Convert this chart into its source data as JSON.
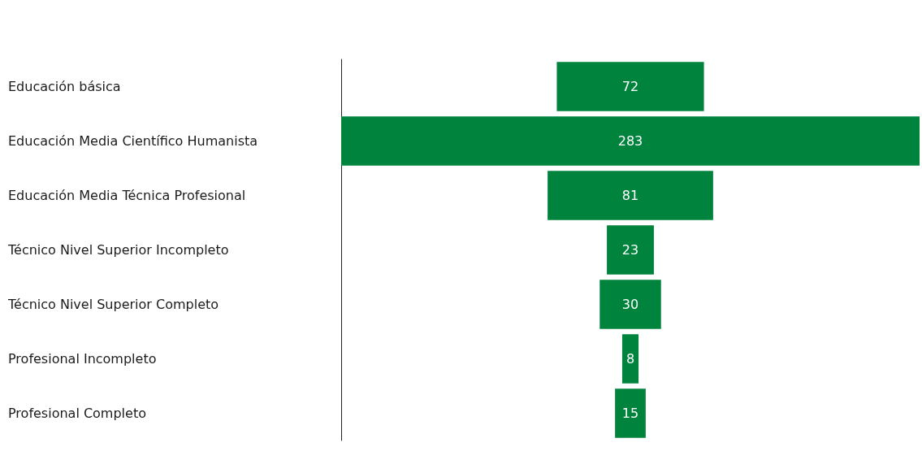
{
  "chart_data": {
    "type": "other",
    "categories": [
      "Educación básica",
      "Educación Media Científico Humanista",
      "Educación Media Técnica Profesional",
      "Técnico Nivel Superior Incompleto",
      "Técnico Nivel Superior Completo",
      "Profesional Incompleto",
      "Profesional Completo"
    ],
    "values": [
      72,
      283,
      81,
      23,
      30,
      8,
      15
    ],
    "color": "#00843d",
    "data_labels": true
  }
}
